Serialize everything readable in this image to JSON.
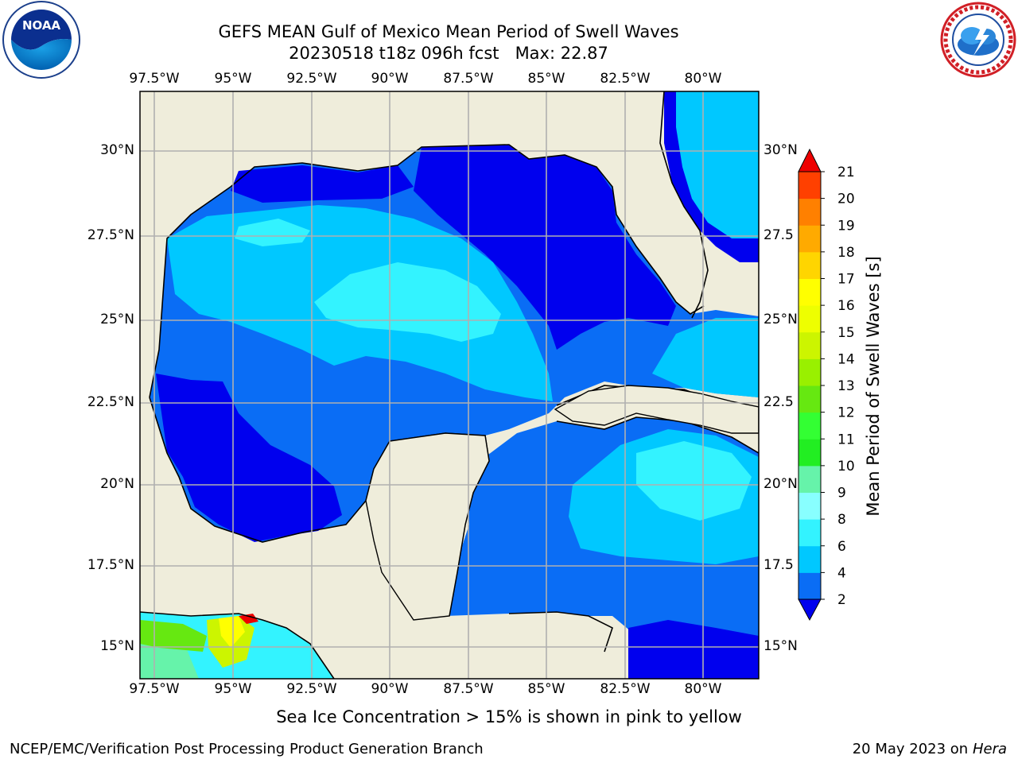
{
  "header": {
    "title": "GEFS MEAN Gulf of Mexico Mean Period of Swell Waves",
    "subtitle": "20230518 t18z 096h fcst",
    "max_label": "Max: 22.87"
  },
  "logos": {
    "left": {
      "icon": "noaa-logo-icon",
      "text": "NOAA"
    },
    "right": {
      "icon": "nws-logo-icon",
      "text": "NATIONAL WEATHER SERVICE"
    }
  },
  "map": {
    "lon_labels": [
      "97.5°W",
      "95°W",
      "92.5°W",
      "90°W",
      "87.5°W",
      "85°W",
      "82.5°W",
      "80°W"
    ],
    "lat_labels_left": [
      "30°N",
      "27.5°N",
      "25°N",
      "22.5°N",
      "20°N",
      "17.5°N",
      "15°N"
    ],
    "lat_labels_right": [
      "30°N",
      "27.5",
      "25°N",
      "22.5",
      "20°N",
      "17.5",
      "15°N"
    ],
    "colors": {
      "land": "#efeddb",
      "grid": "#b0b0b0",
      "coast": "#000000"
    }
  },
  "colorbar": {
    "label": "Mean Period of Swell Waves [s]",
    "ticks": [
      "2",
      "4",
      "6",
      "8",
      "9",
      "10",
      "11",
      "12",
      "13",
      "14",
      "15",
      "16",
      "17",
      "18",
      "19",
      "20",
      "21"
    ],
    "colors": [
      "#0a6df5",
      "#00c8ff",
      "#33f3ff",
      "#88ffff",
      "#66f3aa",
      "#22ee22",
      "#33ff33",
      "#66e811",
      "#99f000",
      "#ccf500",
      "#eeff00",
      "#ffff00",
      "#ffd500",
      "#ffaa00",
      "#ff8000",
      "#ff4000",
      "#ff1000"
    ],
    "under_color": "#0000ee",
    "over_color": "#ee0000"
  },
  "note": "Sea Ice Concentration > 15% is shown in pink to yellow",
  "footer": {
    "left": "NCEP/EMC/Verification Post Processing Product Generation Branch",
    "date": "20 May 2023 on",
    "host": "Hera"
  }
}
